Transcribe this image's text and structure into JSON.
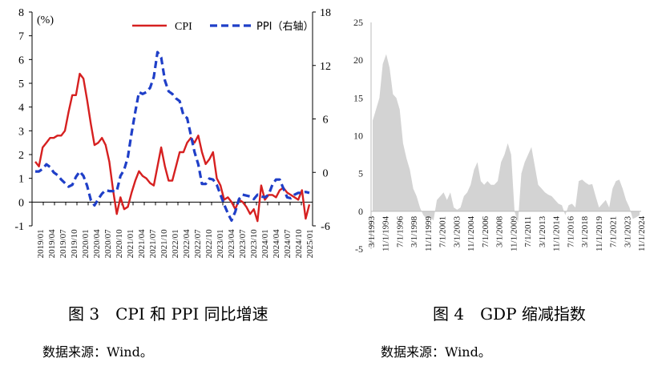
{
  "fig3": {
    "caption": "图 3　CPI 和 PPI 同比增速",
    "source": "数据来源：Wind。",
    "chart_data": {
      "type": "line",
      "y_unit_label": "(%)",
      "legend": [
        "CPI",
        "PPI（右轴）"
      ],
      "legend_position": "top",
      "ylim": [
        -1,
        8
      ],
      "y_ticks": [
        "-1",
        "0",
        "1",
        "2",
        "3",
        "4",
        "5",
        "6",
        "7",
        "8"
      ],
      "ylim_right": [
        -6,
        18
      ],
      "y_ticks_right": [
        "-6",
        "0",
        "6",
        "12",
        "18"
      ],
      "x_tick_labels": [
        "2019/01",
        "2019/04",
        "2019/07",
        "2019/10",
        "2020/01",
        "2020/04",
        "2020/07",
        "2020/10",
        "2021/01",
        "2021/04",
        "2021/07",
        "2021/10",
        "2022/01",
        "2022/04",
        "2022/07",
        "2022/10",
        "2023/01",
        "2023/04",
        "2023/07",
        "2023/10",
        "2024/01",
        "2024/04",
        "2024/07",
        "2024/10",
        "2025/01"
      ],
      "series": [
        {
          "name": "CPI",
          "axis": "left",
          "color": "#d62020",
          "dash": "solid",
          "values": [
            1.7,
            1.5,
            2.3,
            2.5,
            2.7,
            2.7,
            2.8,
            2.8,
            3.0,
            3.8,
            4.5,
            4.5,
            5.4,
            5.2,
            4.3,
            3.3,
            2.4,
            2.5,
            2.7,
            2.4,
            1.7,
            0.5,
            -0.5,
            0.2,
            -0.3,
            -0.2,
            0.4,
            0.9,
            1.3,
            1.1,
            1.0,
            0.8,
            0.7,
            1.5,
            2.3,
            1.5,
            0.9,
            0.9,
            1.5,
            2.1,
            2.1,
            2.5,
            2.7,
            2.5,
            2.8,
            2.1,
            1.6,
            1.8,
            2.1,
            1.0,
            0.7,
            0.1,
            0.2,
            0.0,
            -0.3,
            0.1,
            0.0,
            -0.2,
            -0.5,
            -0.3,
            -0.8,
            0.7,
            0.1,
            0.3,
            0.3,
            0.2,
            0.5,
            0.6,
            0.4,
            0.3,
            0.2,
            0.1,
            0.5,
            -0.7,
            -0.1
          ]
        },
        {
          "name": "PPI（右轴）",
          "axis": "right",
          "color": "#1f3fc8",
          "dash": "dashed",
          "values": [
            0.1,
            0.1,
            0.4,
            0.9,
            0.6,
            0.0,
            -0.3,
            -0.8,
            -1.2,
            -1.6,
            -1.4,
            -0.5,
            0.1,
            -0.4,
            -1.5,
            -3.1,
            -3.7,
            -3.0,
            -2.4,
            -2.0,
            -2.1,
            -2.1,
            -2.1,
            -0.4,
            0.3,
            1.7,
            4.4,
            6.8,
            9.0,
            8.8,
            9.0,
            9.5,
            10.7,
            13.5,
            12.9,
            10.3,
            9.1,
            8.8,
            8.3,
            8.0,
            6.4,
            6.1,
            4.2,
            2.3,
            0.9,
            -1.3,
            -1.3,
            -0.7,
            -0.8,
            -1.4,
            -2.5,
            -3.6,
            -4.6,
            -5.4,
            -4.4,
            -3.0,
            -2.5,
            -2.6,
            -2.7,
            -3.0,
            -2.5,
            -2.7,
            -2.8,
            -2.5,
            -1.4,
            -0.8,
            -0.8,
            -1.8,
            -2.8,
            -2.9,
            -2.5,
            -2.3,
            -2.3,
            -2.2,
            -2.3
          ]
        }
      ]
    }
  },
  "fig4": {
    "caption": "图 4　GDP 缩减指数",
    "source": "数据来源：Wind。",
    "chart_data": {
      "type": "area",
      "color": "#d3d3d3",
      "ylim": [
        -5,
        25
      ],
      "y_ticks": [
        "-5",
        "0",
        "5",
        "10",
        "15",
        "20",
        "25"
      ],
      "x_tick_labels": [
        "3/1/1993",
        "11/1/1994",
        "7/1/1996",
        "3/1/1998",
        "11/1/1999",
        "7/1/2001",
        "3/1/2003",
        "11/1/2004",
        "7/1/2006",
        "3/1/2008",
        "11/1/2009",
        "7/1/2011",
        "3/1/2013",
        "11/1/2014",
        "7/1/2016",
        "3/1/2018",
        "11/1/2019",
        "7/1/2021",
        "3/1/2023",
        "11/1/2024"
      ],
      "values": [
        12.0,
        13.5,
        15.0,
        19.5,
        20.8,
        19.0,
        15.5,
        15.0,
        13.5,
        9.0,
        7.0,
        5.5,
        3.0,
        2.0,
        0.5,
        -0.5,
        -1.0,
        -0.8,
        -1.2,
        1.5,
        2.0,
        2.5,
        1.5,
        2.5,
        0.5,
        0.2,
        0.5,
        2.0,
        2.5,
        3.5,
        5.5,
        6.5,
        4.0,
        3.5,
        4.0,
        3.5,
        3.5,
        4.0,
        6.5,
        7.5,
        9.0,
        7.5,
        0.0,
        -1.5,
        5.0,
        6.5,
        7.5,
        8.5,
        6.0,
        3.5,
        3.0,
        2.5,
        2.2,
        2.0,
        1.5,
        1.0,
        0.8,
        -0.5,
        0.8,
        1.0,
        0.5,
        4.0,
        4.2,
        3.8,
        3.5,
        3.6,
        2.0,
        0.5,
        1.0,
        1.5,
        0.5,
        3.0,
        4.0,
        4.2,
        3.0,
        1.5,
        0.5,
        -1.0,
        -0.8,
        -0.5
      ]
    }
  }
}
